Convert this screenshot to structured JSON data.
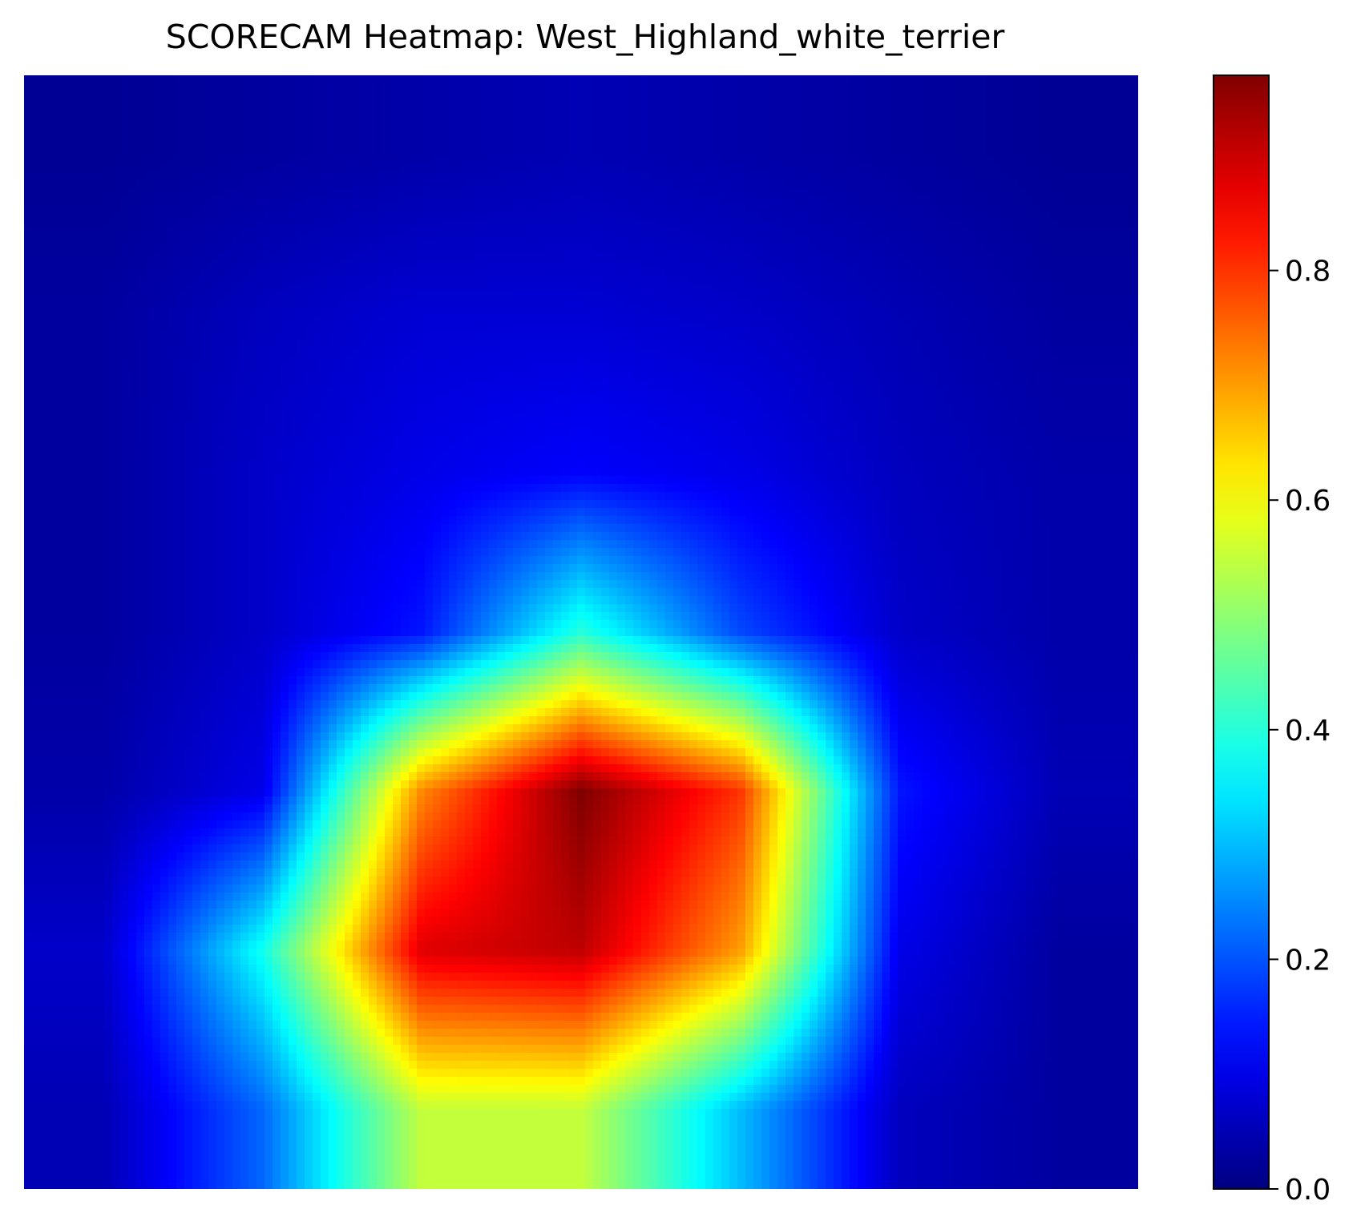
{
  "chart_data": {
    "type": "heatmap",
    "title": "SCORECAM Heatmap: West_Highland_white_terrier",
    "colormap": "jet",
    "axes_visible": false,
    "value_range": [
      0.0,
      0.97
    ],
    "colorbar": {
      "placement": "right",
      "ticks": [
        0.0,
        0.2,
        0.4,
        0.6,
        0.8
      ],
      "tick_labels": [
        "0.0",
        "0.2",
        "0.4",
        "0.6",
        "0.8"
      ]
    },
    "grid": {
      "rows": 7,
      "cols": 7,
      "values": [
        [
          0.02,
          0.03,
          0.04,
          0.05,
          0.04,
          0.03,
          0.02
        ],
        [
          0.03,
          0.06,
          0.08,
          0.08,
          0.07,
          0.05,
          0.03
        ],
        [
          0.03,
          0.07,
          0.1,
          0.12,
          0.1,
          0.06,
          0.04
        ],
        [
          0.03,
          0.07,
          0.14,
          0.4,
          0.19,
          0.07,
          0.04
        ],
        [
          0.04,
          0.1,
          0.72,
          0.97,
          0.8,
          0.14,
          0.05
        ],
        [
          0.07,
          0.38,
          0.88,
          0.91,
          0.7,
          0.1,
          0.03
        ],
        [
          0.05,
          0.22,
          0.55,
          0.55,
          0.3,
          0.06,
          0.03
        ]
      ]
    }
  }
}
